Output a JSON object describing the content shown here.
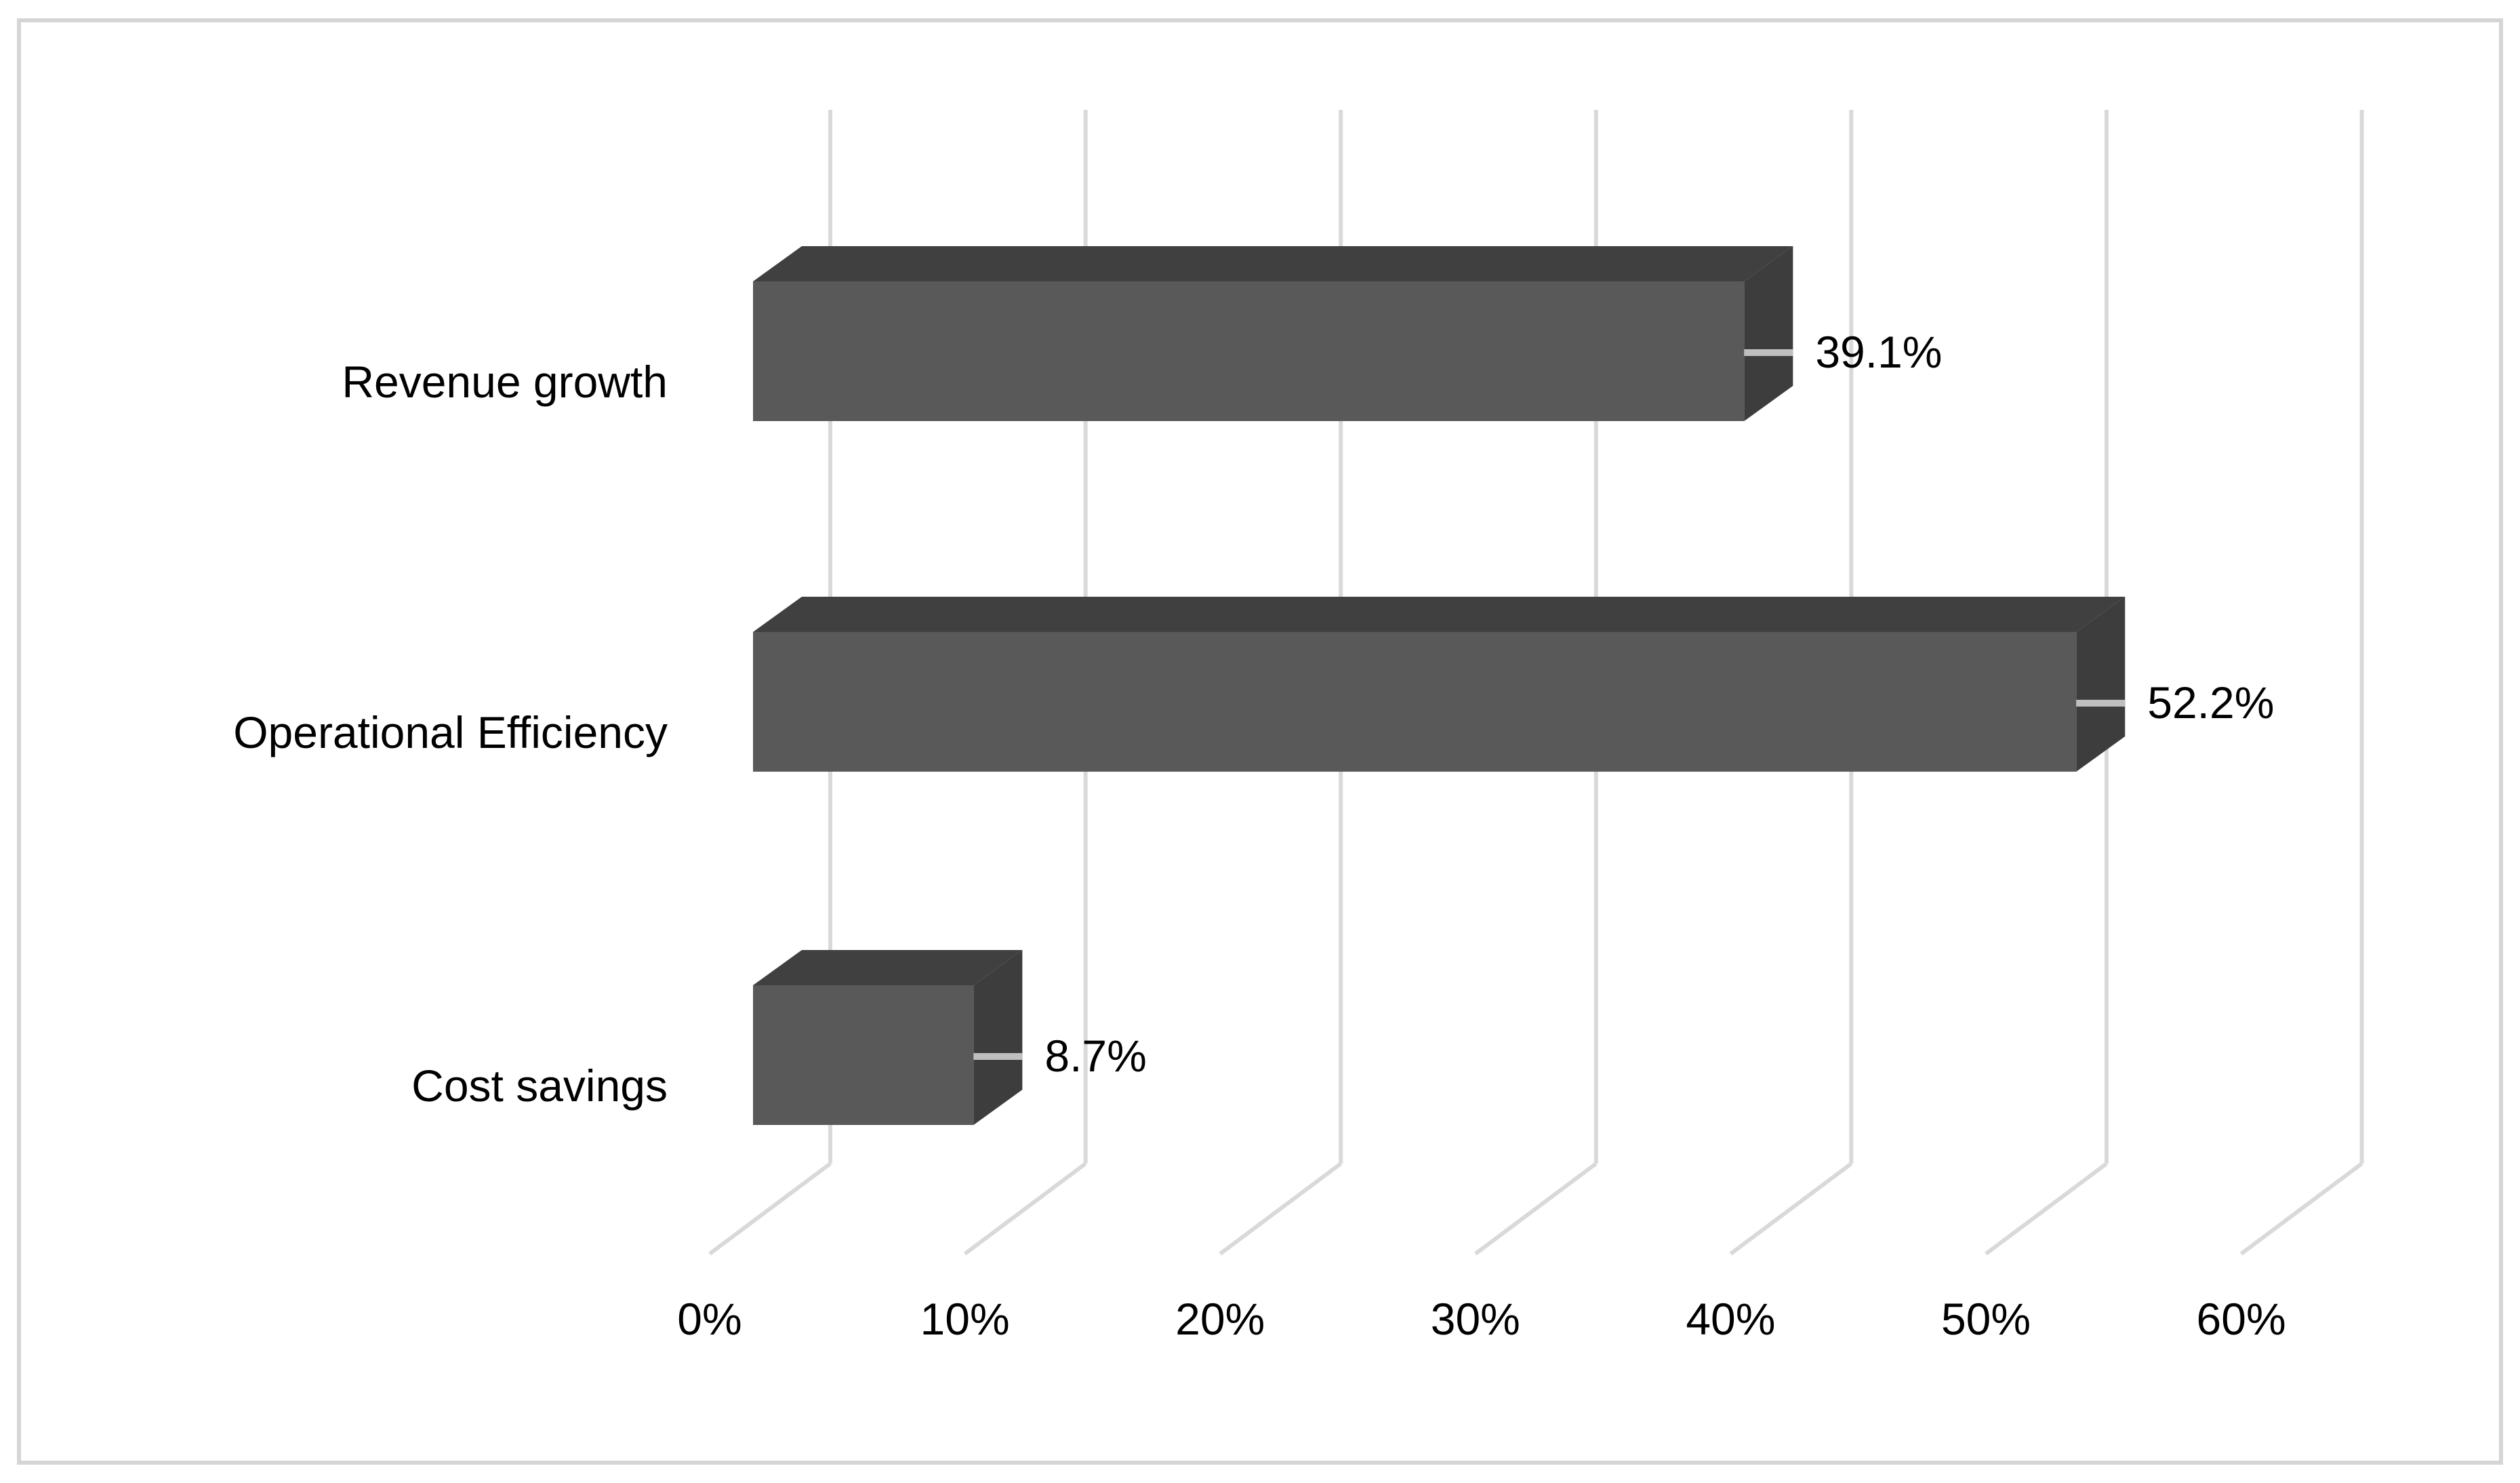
{
  "chart_data": {
    "type": "bar",
    "orientation": "horizontal",
    "style": "3d",
    "title": "",
    "xlabel": "",
    "ylabel": "",
    "categories": [
      "Revenue growth",
      "Operational Efficiency",
      "Cost savings"
    ],
    "values": [
      39.1,
      52.2,
      8.7
    ],
    "value_labels": [
      "39.1%",
      "52.2%",
      "8.7%"
    ],
    "x_ticks": [
      "0%",
      "10%",
      "20%",
      "30%",
      "40%",
      "50%",
      "60%"
    ],
    "x_tick_values": [
      0,
      10,
      20,
      30,
      40,
      50,
      60
    ],
    "xlim": [
      0,
      60
    ],
    "grid": true,
    "legend": false,
    "colors": {
      "bar_front": "#595959",
      "bar_top": "#404040",
      "bar_side": "#3d3d3d",
      "gridline": "#d9d9d9",
      "leader_line": "#bfbfbf",
      "text": "#000000",
      "border": "#d5d5d5",
      "background": "#ffffff"
    }
  }
}
